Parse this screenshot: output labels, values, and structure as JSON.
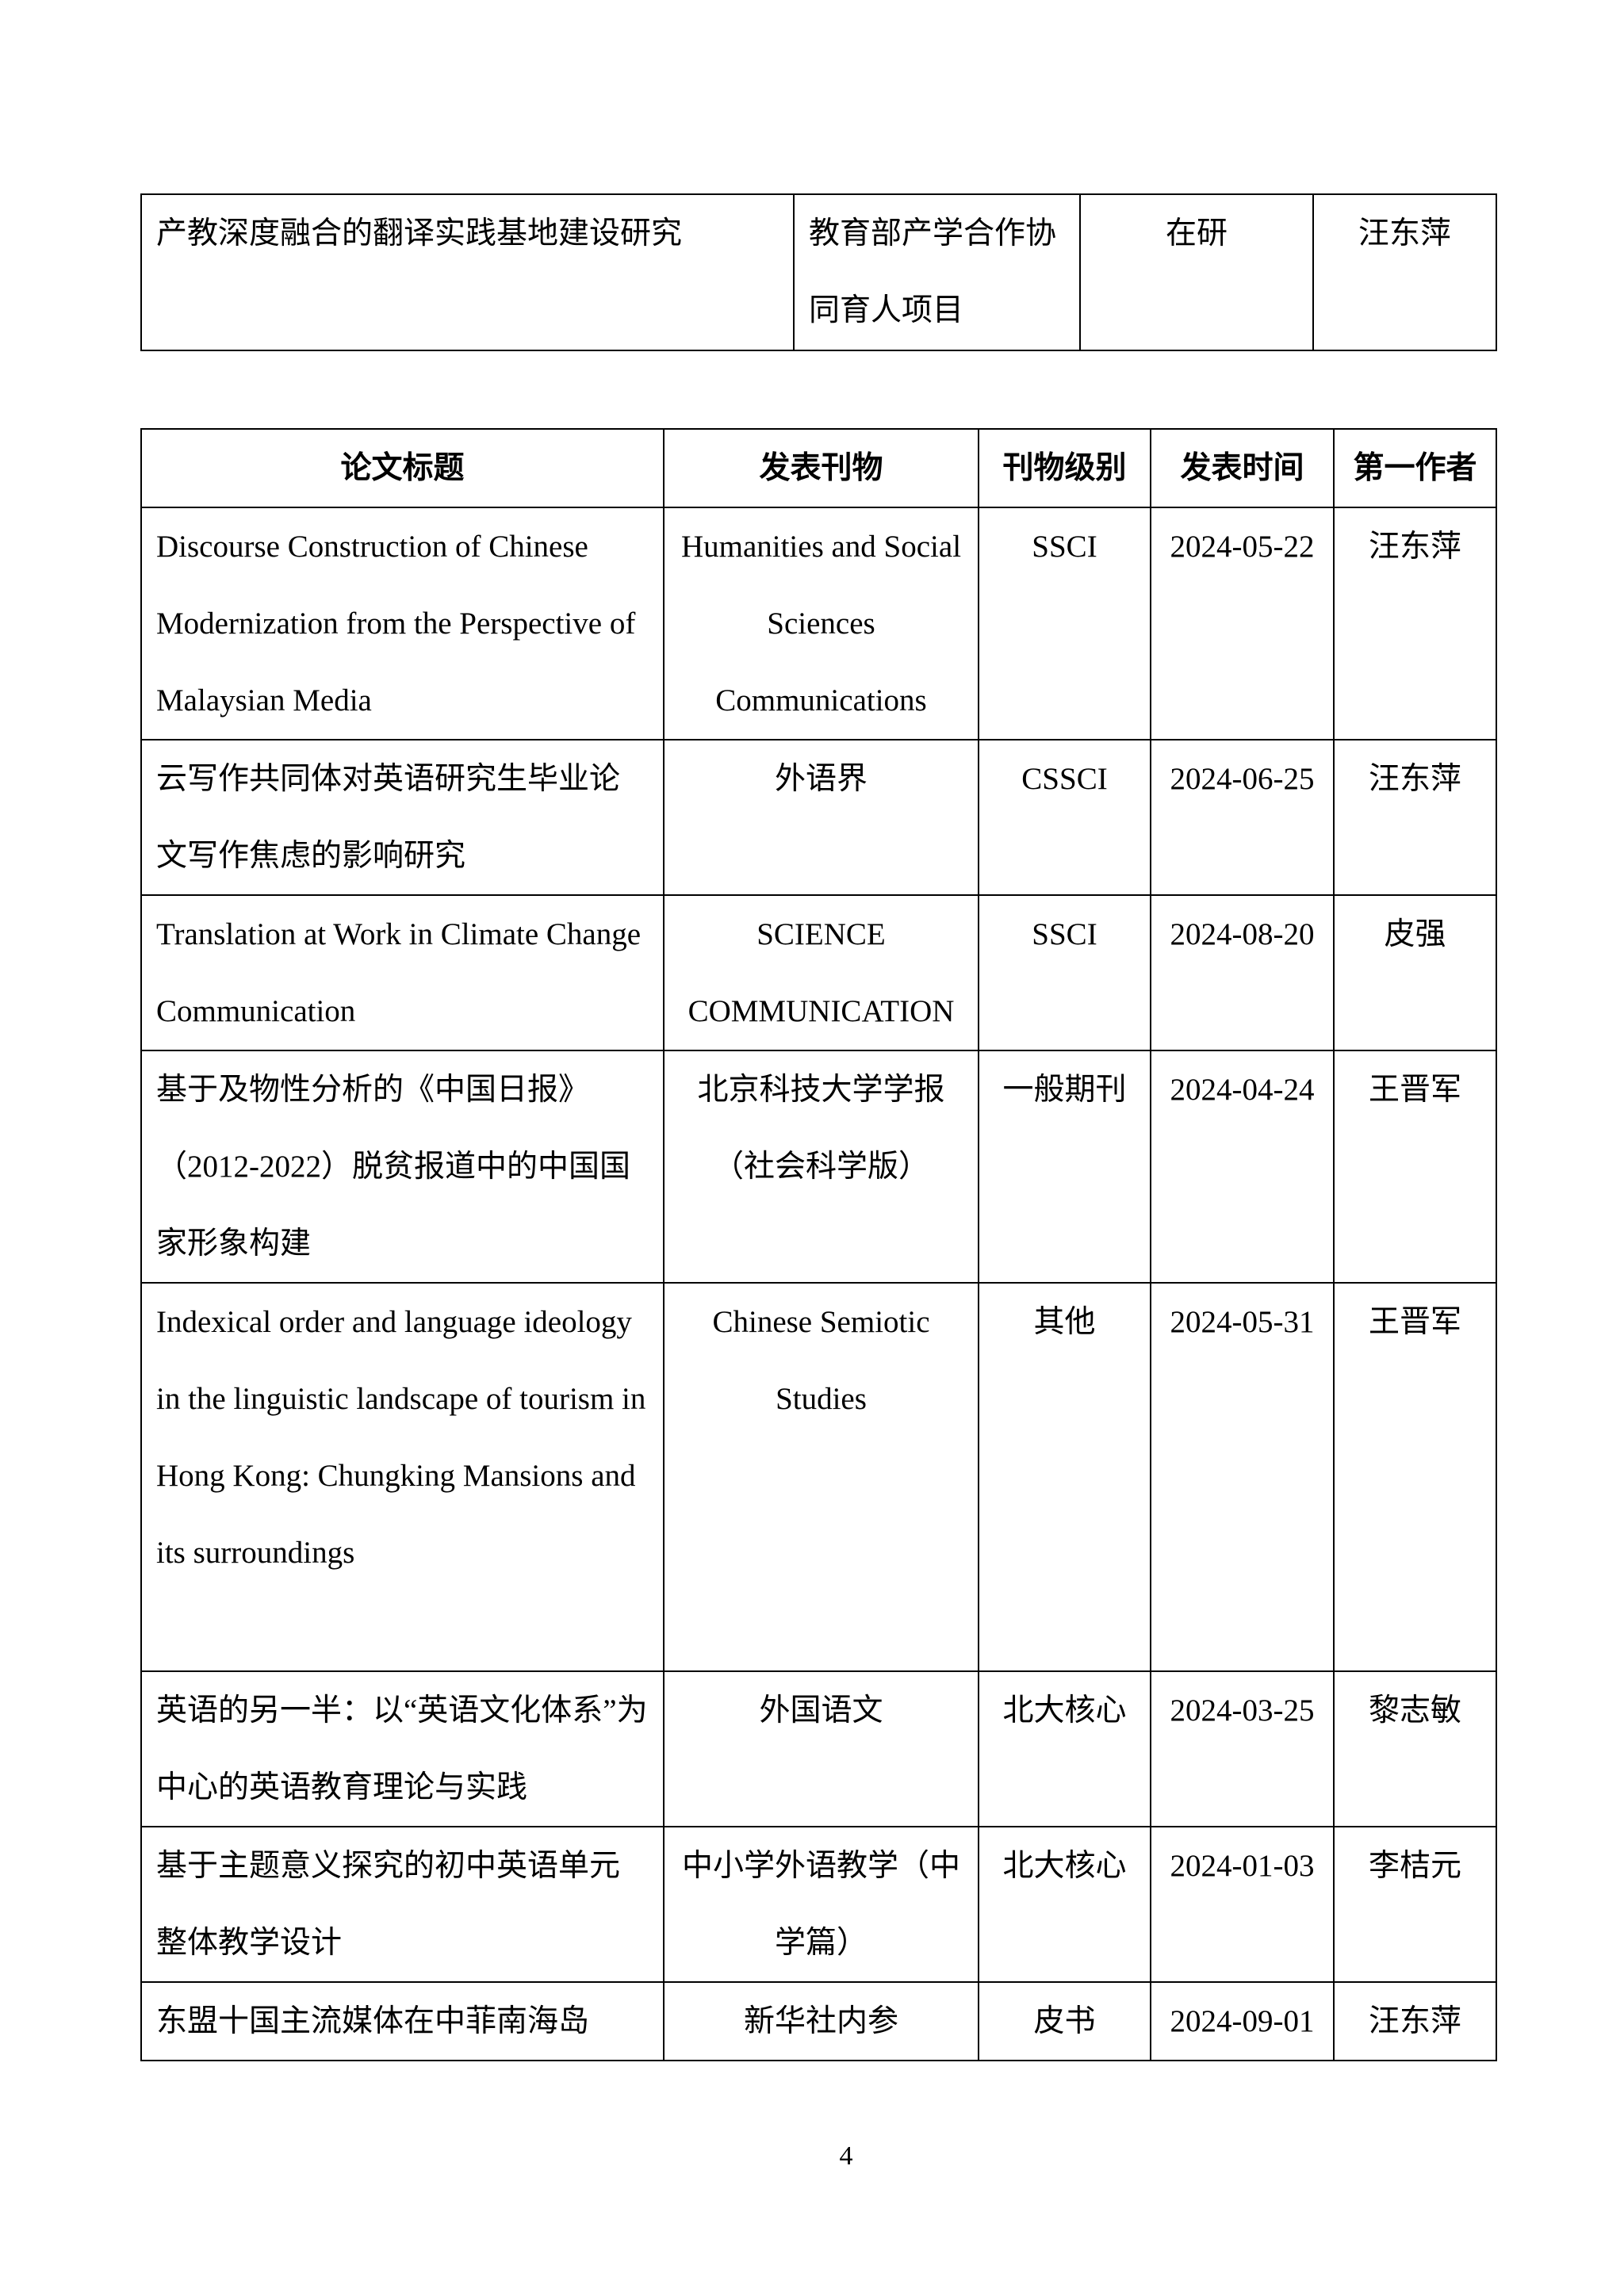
{
  "project_table": {
    "rows": [
      {
        "title": "产教深度融合的翻译实践基地建设研究",
        "type": "教育部产学合作协同育人项目",
        "status": "在研",
        "leader": "汪东萍"
      }
    ]
  },
  "papers_table": {
    "headers": [
      "论文标题",
      "发表刊物",
      "刊物级别",
      "发表时间",
      "第一作者"
    ],
    "rows": [
      {
        "title": "Discourse Construction of Chinese Modernization from the Perspective of Malaysian Media",
        "journal": "Humanities and Social Sciences Communications",
        "level": "SSCI",
        "date": "2024-05-22",
        "author": "汪东萍"
      },
      {
        "title": "云写作共同体对英语研究生毕业论文写作焦虑的影响研究",
        "journal": "外语界",
        "level": "CSSCI",
        "date": "2024-06-25",
        "author": "汪东萍"
      },
      {
        "title": "Translation at Work in Climate Change Communication",
        "journal": "SCIENCE COMMUNICATION",
        "level": "SSCI",
        "date": "2024-08-20",
        "author": "皮强"
      },
      {
        "title": "基于及物性分析的《中国日报》（2012-2022）脱贫报道中的中国国家形象构建",
        "journal": "北京科技大学学报（社会科学版）",
        "level": "一般期刊",
        "date": "2024-04-24",
        "author": "王晋军"
      },
      {
        "title": "Indexical order and language ideology in the linguistic landscape of tourism in Hong Kong: Chungking Mansions and its surroundings",
        "journal": "Chinese Semiotic Studies",
        "level": "其他",
        "date": "2024-05-31",
        "author": "王晋军"
      },
      {
        "title": "英语的另一半：以“英语文化体系”为中心的英语教育理论与实践",
        "journal": "外国语文",
        "level": "北大核心",
        "date": "2024-03-25",
        "author": "黎志敏"
      },
      {
        "title": "基于主题意义探究的初中英语单元整体教学设计",
        "journal": "中小学外语教学（中学篇）",
        "level": "北大核心",
        "date": "2024-01-03",
        "author": "李桔元"
      },
      {
        "title": "东盟十国主流媒体在中菲南海岛",
        "journal": "新华社内参",
        "level": "皮书",
        "date": "2024-09-01",
        "author": "汪东萍"
      }
    ]
  },
  "page_number": "4"
}
